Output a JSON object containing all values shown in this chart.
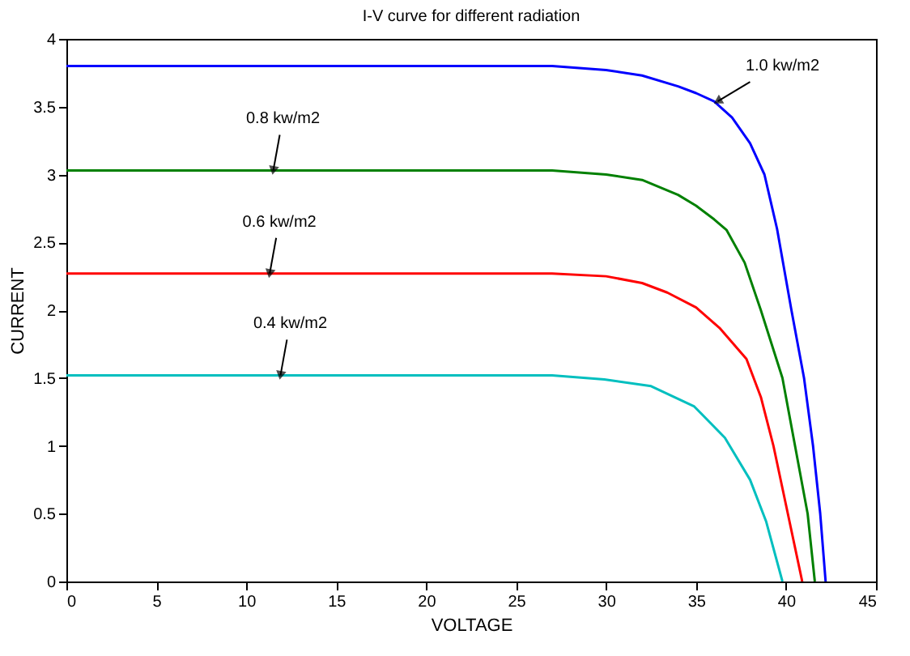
{
  "chart_data": {
    "type": "line",
    "title": "I-V curve for different radiation",
    "xlabel": "VOLTAGE",
    "ylabel": "CURRENT",
    "xlim": [
      0,
      45
    ],
    "xticks": [
      0,
      5,
      10,
      15,
      20,
      25,
      30,
      35,
      40,
      45
    ],
    "ylim": [
      0,
      4
    ],
    "yticks": [
      0,
      0.5,
      1,
      1.5,
      2,
      2.5,
      3,
      3.5,
      4
    ],
    "grid": false,
    "marker": "none",
    "line_style": "solid",
    "series": [
      {
        "color": "#0000ff",
        "x": [
          0,
          27,
          30,
          32,
          34,
          35,
          36,
          37,
          38,
          38.8,
          39.5,
          40.3,
          41.0,
          41.5,
          41.9,
          42.2
        ],
        "values": [
          3.8,
          3.8,
          3.77,
          3.73,
          3.65,
          3.6,
          3.54,
          3.42,
          3.23,
          3.0,
          2.6,
          2.0,
          1.5,
          1.0,
          0.5,
          0
        ]
      },
      {
        "color": "#008000",
        "x": [
          0,
          27,
          30,
          32,
          34,
          35,
          36,
          36.7,
          37.7,
          38.6,
          39.8,
          40.5,
          41.2,
          41.6
        ],
        "values": [
          3.03,
          3.03,
          3.0,
          2.96,
          2.85,
          2.77,
          2.67,
          2.59,
          2.35,
          2.0,
          1.5,
          1.0,
          0.5,
          0
        ]
      },
      {
        "color": "#ff0000",
        "x": [
          0,
          27,
          30,
          32,
          33.4,
          35,
          36.3,
          37.8,
          38.6,
          39.3,
          40.1,
          40.9
        ],
        "values": [
          2.27,
          2.27,
          2.25,
          2.2,
          2.13,
          2.02,
          1.87,
          1.64,
          1.36,
          1.0,
          0.5,
          0
        ]
      },
      {
        "color": "#00bfbf",
        "x": [
          0,
          27,
          29.9,
          32.5,
          34.9,
          36.6,
          38,
          38.9,
          39.8
        ],
        "values": [
          1.52,
          1.52,
          1.49,
          1.44,
          1.29,
          1.06,
          0.75,
          0.44,
          0
        ]
      }
    ],
    "annotations": [
      {
        "text": "1.0 kw/m2",
        "x": 36.2,
        "y": 3.54
      },
      {
        "text": "0.8 kw/m2",
        "x": 11.5,
        "y": 3.03
      },
      {
        "text": "0.6 kw/m2",
        "x": 11.3,
        "y": 2.27
      },
      {
        "text": "0.4 kw/m2",
        "x": 11.9,
        "y": 1.52
      }
    ]
  }
}
